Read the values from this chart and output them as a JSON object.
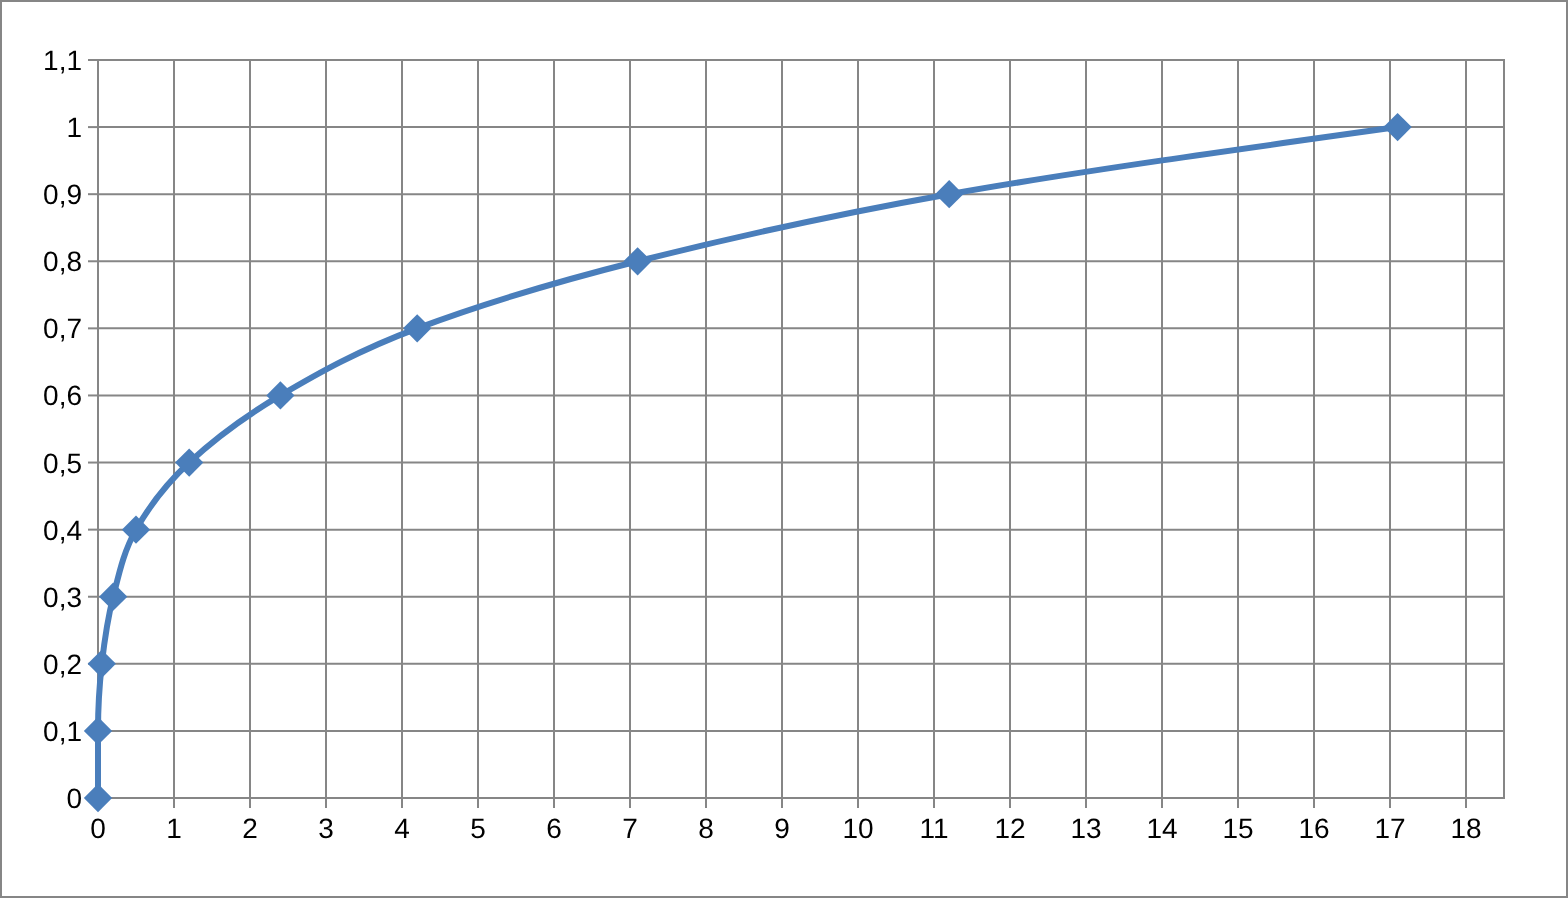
{
  "chart_data": {
    "type": "line",
    "x": [
      0,
      0,
      0.05,
      0.2,
      0.5,
      1.2,
      2.4,
      4.2,
      7.1,
      11.2,
      17.1
    ],
    "series": [
      {
        "color": "#4a7ebb",
        "values": [
          0,
          0.1,
          0.2,
          0.3,
          0.4,
          0.5,
          0.6,
          0.7,
          0.8,
          0.9,
          1
        ]
      }
    ],
    "xlim": [
      0,
      18.5
    ],
    "xticks": [
      0,
      1,
      2,
      3,
      4,
      5,
      6,
      7,
      8,
      9,
      10,
      11,
      12,
      13,
      14,
      15,
      16,
      17,
      18
    ],
    "ylim": [
      0,
      1.1
    ],
    "yticks": [
      0,
      {
        "value": 0.1,
        "label": "0,1"
      },
      {
        "value": 0.2,
        "label": "0,2"
      },
      {
        "value": 0.3,
        "label": "0,3"
      },
      {
        "value": 0.4,
        "label": "0,4"
      },
      {
        "value": 0.5,
        "label": "0,5"
      },
      {
        "value": 0.6,
        "label": "0,6"
      },
      {
        "value": 0.7,
        "label": "0,7"
      },
      {
        "value": 0.8,
        "label": "0,8"
      },
      {
        "value": 0.9,
        "label": "0,9"
      },
      1,
      {
        "value": 1.1,
        "label": "1,1"
      }
    ],
    "grid": true,
    "marker": "diamond"
  }
}
